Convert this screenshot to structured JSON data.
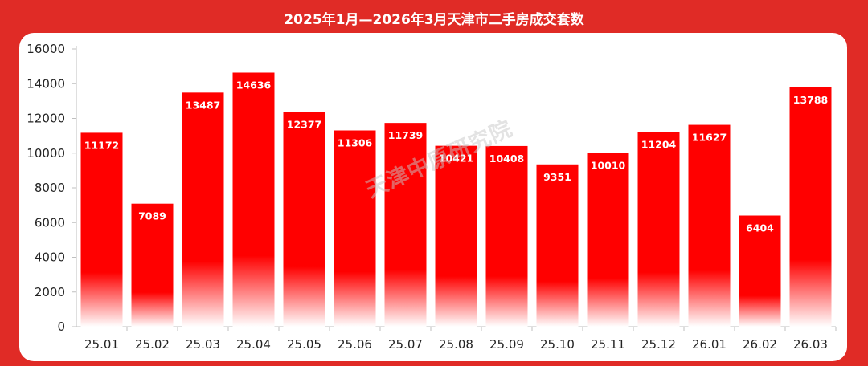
{
  "title": "2025年1月—2026年3月天津市二手房成交套数",
  "watermark": "天津中原研究院",
  "colors": {
    "frame": "#e02b26",
    "bar": "#ff0000",
    "panel": "#ffffff"
  },
  "chart_data": {
    "type": "bar",
    "title": "2025年1月—2026年3月天津市二手房成交套数",
    "categories": [
      "25.01",
      "25.02",
      "25.03",
      "25.04",
      "25.05",
      "25.06",
      "25.07",
      "25.08",
      "25.09",
      "25.10",
      "25.11",
      "25.12",
      "26.01",
      "26.02",
      "26.03"
    ],
    "values": [
      11172,
      7089,
      13487,
      14636,
      12377,
      11306,
      11739,
      10421,
      10408,
      9351,
      10010,
      11204,
      11627,
      6404,
      13788
    ],
    "ylim": [
      0,
      16000
    ],
    "yticks": [
      "0",
      "2000",
      "4000",
      "6000",
      "8000",
      "10000",
      "12000",
      "14000",
      "16000"
    ],
    "grid": false,
    "data_labels": true,
    "legend": "none"
  }
}
